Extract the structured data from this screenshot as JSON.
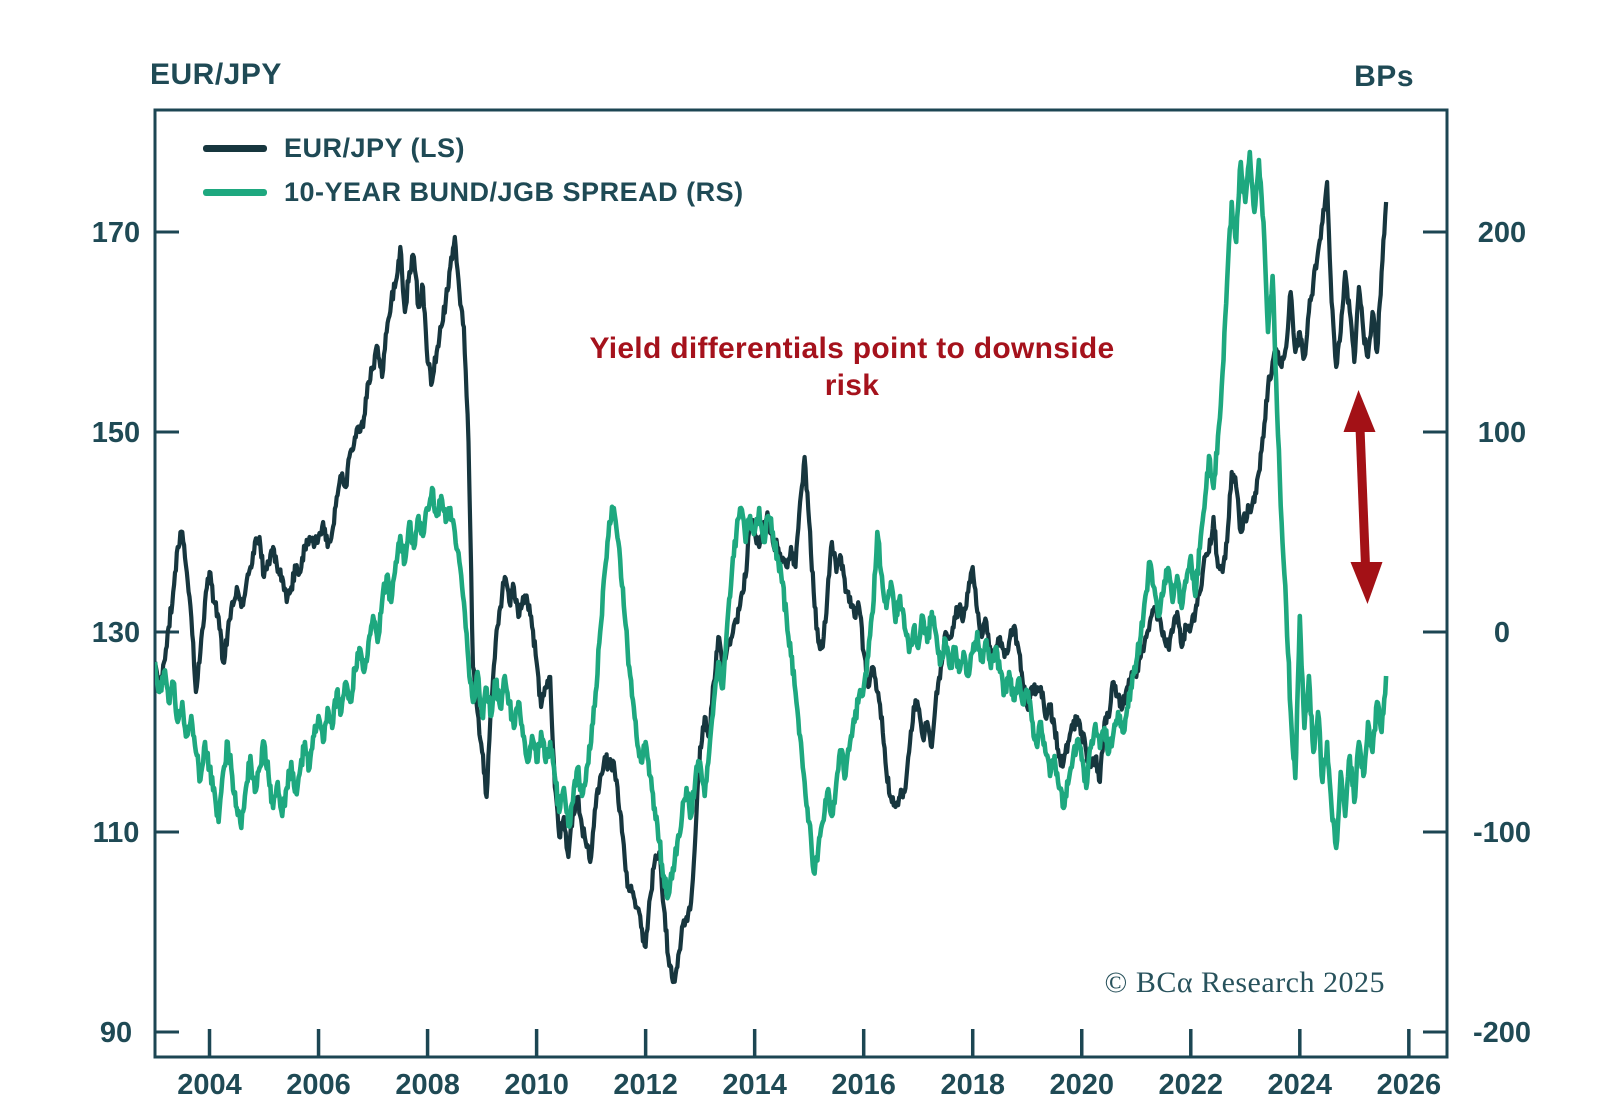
{
  "credit": {
    "text": "© BCα Research 2025",
    "color": "#28525c"
  },
  "chart_data": {
    "type": "line",
    "title": "",
    "grid": false,
    "legend_position": "top-left",
    "axis_color": "#1c4653",
    "label_color": "#1f4a55",
    "y_left": {
      "label": "EUR/JPY",
      "ticks": [
        170,
        150,
        130,
        110,
        90
      ],
      "range": [
        87.5,
        182.2
      ]
    },
    "y_right": {
      "label": "BPs",
      "ticks": [
        200,
        100,
        0,
        -100,
        -200
      ],
      "range": [
        -212.5,
        261
      ]
    },
    "x_axis": {
      "ticks": [
        2004,
        2006,
        2008,
        2010,
        2012,
        2014,
        2016,
        2018,
        2020,
        2022,
        2024,
        2026
      ],
      "range": [
        2003.0,
        2026.7
      ],
      "start": 2003.0,
      "frequency": "monthly"
    },
    "series": [
      {
        "name": "EUR/JPY (LS)",
        "axis": "left",
        "color": "#17363e",
        "values": [
          127,
          124.5,
          127,
          130.5,
          134,
          138.5,
          140,
          136,
          131.5,
          124,
          128,
          133,
          136,
          133,
          131.5,
          127,
          130,
          133,
          134.5,
          132.5,
          134.5,
          136.5,
          139,
          139.5,
          135.5,
          137,
          138.5,
          136,
          135.5,
          133,
          134.5,
          136.5,
          136,
          138.5,
          139.5,
          138.5,
          139.5,
          141,
          138.5,
          140,
          143.5,
          145.5,
          144.5,
          148,
          149.5,
          150,
          151.5,
          155,
          156.5,
          158.5,
          155.5,
          160,
          163,
          165,
          168.5,
          162,
          166,
          167.5,
          162.5,
          164.5,
          157,
          155,
          158,
          160.5,
          163,
          166.5,
          169.5,
          164,
          160.5,
          149,
          126.5,
          122,
          118,
          113.5,
          123,
          129,
          132.5,
          135.5,
          133,
          134.5,
          131.5,
          133.5,
          133,
          130.5,
          127,
          122.5,
          124.5,
          125.5,
          114.5,
          109.5,
          111.5,
          107.5,
          112,
          113.5,
          110.5,
          108.5,
          107.5,
          112.5,
          115.5,
          117.5,
          116.5,
          117,
          113,
          109.5,
          104.5,
          104,
          102.5,
          100.5,
          98.5,
          103.5,
          107,
          108,
          102.5,
          97.5,
          95,
          96.5,
          100.5,
          101.5,
          103,
          110,
          118.5,
          121.5,
          119.5,
          125,
          129.5,
          126.5,
          128.5,
          129.5,
          131,
          133.5,
          135.5,
          141.5,
          140,
          138.5,
          141,
          141.5,
          139,
          138.5,
          137,
          136.5,
          138.5,
          136.5,
          143,
          147.5,
          141,
          134,
          129,
          128.5,
          133.5,
          139,
          136,
          137.5,
          134,
          133.5,
          131.5,
          132.5,
          128,
          124.5,
          126.5,
          124,
          121.5,
          116,
          113.5,
          112.5,
          113.5,
          114,
          118,
          122.5,
          122.5,
          119.5,
          121,
          118.5,
          124,
          126.5,
          130,
          129.5,
          131.5,
          132.5,
          131.5,
          134,
          136.5,
          132,
          129.5,
          131,
          127.5,
          128,
          129.5,
          127.5,
          129,
          130.5,
          128.5,
          125,
          122.5,
          124.5,
          124,
          124.5,
          121.5,
          122.5,
          120.5,
          117.5,
          117,
          119,
          120.5,
          121.5,
          120,
          118,
          116.5,
          117.5,
          115,
          121,
          121.5,
          125,
          123.5,
          122.5,
          124.5,
          126,
          125.5,
          127.5,
          129.5,
          131,
          132.5,
          131.5,
          130,
          128.5,
          130,
          132,
          128.5,
          130.5,
          130.5,
          132,
          134,
          137.5,
          138,
          141.5,
          136.5,
          136,
          139,
          146,
          144.5,
          140,
          141.5,
          142.5,
          143,
          146,
          149.5,
          154.5,
          157,
          158,
          156.5,
          158.5,
          164,
          158,
          160,
          157.5,
          162,
          165,
          168,
          171,
          175,
          163,
          156.5,
          160,
          166,
          162,
          157,
          164.5,
          160,
          157.5,
          162,
          158,
          166,
          173
        ]
      },
      {
        "name": "10-YEAR BUND/JGB SPREAD (RS)",
        "axis": "right",
        "color": "#1ea87f",
        "values": [
          -15,
          -30,
          -20,
          -35,
          -25,
          -45,
          -35,
          -52,
          -42,
          -60,
          -74,
          -55,
          -68,
          -78,
          -95,
          -70,
          -55,
          -72,
          -88,
          -98,
          -78,
          -62,
          -80,
          -68,
          -55,
          -72,
          -88,
          -75,
          -92,
          -78,
          -65,
          -80,
          -68,
          -55,
          -68,
          -52,
          -42,
          -55,
          -38,
          -48,
          -30,
          -40,
          -25,
          -35,
          -18,
          -8,
          -20,
          -5,
          8,
          -5,
          15,
          28,
          15,
          35,
          48,
          35,
          55,
          42,
          58,
          48,
          62,
          72,
          58,
          68,
          55,
          62,
          50,
          35,
          15,
          -15,
          -35,
          -20,
          -42,
          -28,
          -42,
          -25,
          -38,
          -22,
          -35,
          -48,
          -35,
          -52,
          -65,
          -52,
          -65,
          -50,
          -65,
          -55,
          -72,
          -90,
          -78,
          -97,
          -85,
          -68,
          -82,
          -68,
          -55,
          -30,
          0,
          30,
          55,
          62,
          45,
          22,
          -8,
          -32,
          -52,
          -65,
          -55,
          -72,
          -88,
          -105,
          -122,
          -132,
          -118,
          -105,
          -92,
          -78,
          -92,
          -72,
          -65,
          -82,
          -60,
          -35,
          -15,
          -28,
          5,
          30,
          50,
          62,
          45,
          58,
          50,
          62,
          45,
          58,
          50,
          38,
          25,
          8,
          -12,
          -30,
          -52,
          -75,
          -95,
          -120,
          -108,
          -95,
          -80,
          -92,
          -75,
          -60,
          -72,
          -55,
          -45,
          -32,
          -28,
          -12,
          10,
          50,
          28,
          12,
          25,
          5,
          18,
          2,
          -10,
          2,
          -8,
          8,
          -5,
          10,
          -2,
          -15,
          -4,
          -18,
          -8,
          -20,
          -10,
          -22,
          -10,
          0,
          -14,
          -4,
          -18,
          -8,
          -20,
          -30,
          -20,
          -34,
          -24,
          -36,
          -30,
          -44,
          -56,
          -45,
          -60,
          -72,
          -62,
          -78,
          -88,
          -76,
          -64,
          -54,
          -64,
          -78,
          -58,
          -46,
          -58,
          -48,
          -60,
          -50,
          -40,
          -50,
          -38,
          -28,
          -15,
          -2,
          18,
          35,
          22,
          8,
          20,
          32,
          15,
          28,
          12,
          25,
          38,
          18,
          42,
          62,
          88,
          72,
          98,
          130,
          175,
          215,
          195,
          235,
          215,
          240,
          210,
          236,
          205,
          150,
          178,
          110,
          55,
          12,
          -40,
          -73,
          8,
          -48,
          -22,
          -60,
          -40,
          -75,
          -55,
          -88,
          -108,
          -70,
          -92,
          -62,
          -85,
          -55,
          -72,
          -45,
          -60,
          -35,
          -50,
          -22
        ]
      }
    ],
    "annotation": {
      "line1": "Yield differentials point to downside",
      "line2": "risk",
      "color": "#a5121c"
    },
    "arrow": {
      "type": "double-headed-vertical",
      "color": "#a31116",
      "x_year": 2025.15,
      "y_right_from": 121,
      "y_right_to": 14
    }
  }
}
